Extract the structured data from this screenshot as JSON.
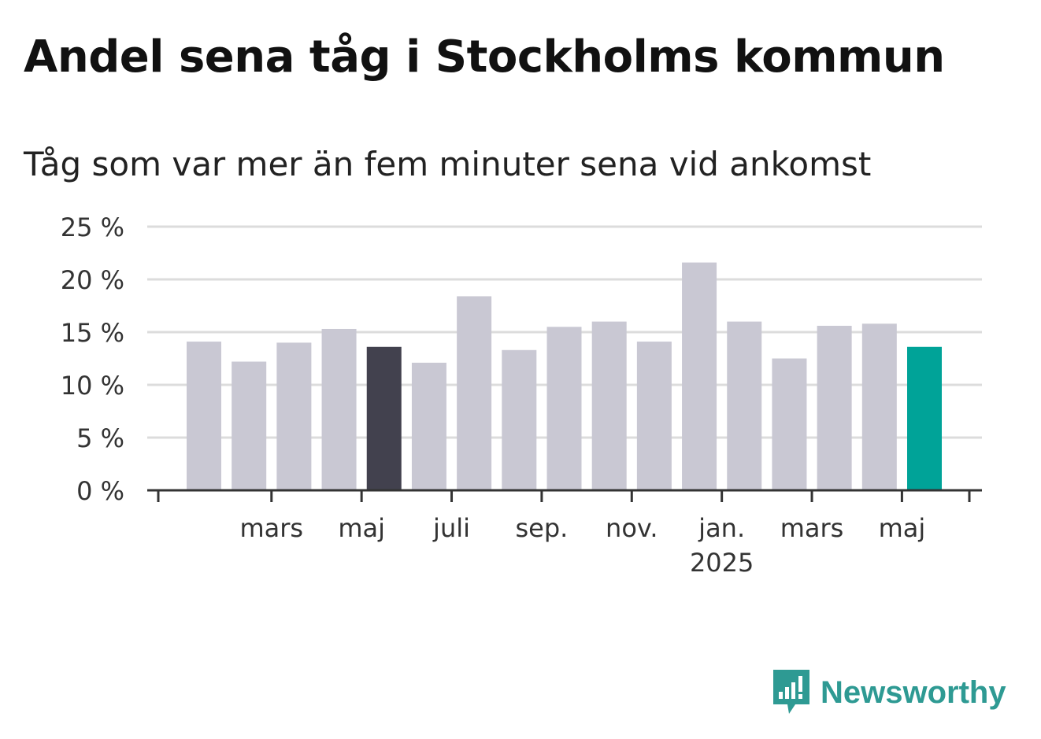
{
  "title": "Andel sena tåg i Stockholms kommun",
  "subtitle": "Tåg som var mer än fem minuter sena vid ankomst",
  "brand": "Newsworthy",
  "colors": {
    "bar_default": "#c9c8d3",
    "bar_highlight": "#42414e",
    "bar_latest": "#00a398",
    "grid": "#dcdcdc",
    "axis": "#333333",
    "brand": "#2e9a93"
  },
  "chart_data": {
    "type": "bar",
    "categories": [
      "",
      "",
      "",
      "",
      "",
      "",
      "",
      "",
      "",
      "",
      "",
      "",
      "",
      "",
      "",
      "",
      ""
    ],
    "values": [
      14.1,
      12.2,
      14.0,
      15.3,
      13.6,
      12.1,
      18.4,
      13.3,
      15.5,
      16.0,
      14.1,
      21.6,
      16.0,
      12.5,
      15.6,
      15.8,
      13.6
    ],
    "ylim": [
      0,
      25
    ],
    "yticks": [
      0,
      5,
      10,
      15,
      20,
      25
    ],
    "ytick_labels": [
      "0 %",
      "5 %",
      "10 %",
      "15 %",
      "20 %",
      "25 %"
    ],
    "xtick_labels": [
      {
        "index": 1,
        "label": "mars",
        "sub": ""
      },
      {
        "index": 3,
        "label": "maj",
        "sub": ""
      },
      {
        "index": 5,
        "label": "juli",
        "sub": ""
      },
      {
        "index": 7,
        "label": "sep.",
        "sub": ""
      },
      {
        "index": 9,
        "label": "nov.",
        "sub": ""
      },
      {
        "index": 11,
        "label": "jan.",
        "sub": "2025"
      },
      {
        "index": 13,
        "label": "mars",
        "sub": ""
      },
      {
        "index": 15,
        "label": "maj",
        "sub": ""
      }
    ],
    "highlight_index": 4,
    "latest_index": 16,
    "grid": true,
    "xlabel": "",
    "ylabel": ""
  }
}
